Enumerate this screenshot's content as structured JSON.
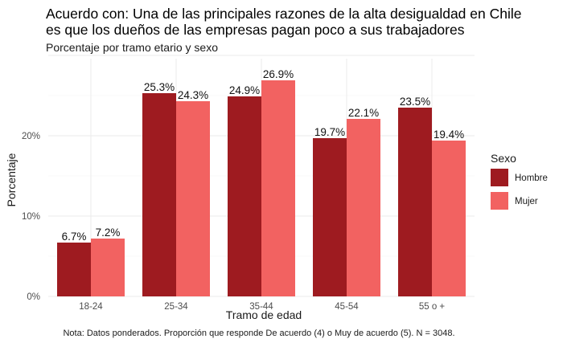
{
  "chart_data": {
    "type": "bar",
    "title": "Acuerdo con: Una de las principales razones de la alta desigualdad en Chile es que los dueños de las empresas pagan poco a sus trabajadores",
    "title_lines": [
      "Acuerdo con: Una de las principales razones de la alta desigualdad en Chile",
      "es que los dueños de las empresas pagan poco a sus trabajadores"
    ],
    "subtitle": "Porcentaje por tramo etario y sexo",
    "xlabel": "Tramo de edad",
    "ylabel": "Porcentaje",
    "categories": [
      "18-24",
      "25-34",
      "35-44",
      "45-54",
      "55 o +"
    ],
    "series": [
      {
        "name": "Hombre",
        "color": "#9e1b20",
        "values": [
          6.7,
          25.3,
          24.9,
          19.7,
          23.5
        ],
        "labels": [
          "6.7%",
          "25.3%",
          "24.9%",
          "19.7%",
          "23.5%"
        ]
      },
      {
        "name": "Mujer",
        "color": "#f26261",
        "values": [
          7.2,
          24.3,
          26.9,
          22.1,
          19.4
        ],
        "labels": [
          "7.2%",
          "24.3%",
          "26.9%",
          "22.1%",
          "19.4%"
        ]
      }
    ],
    "ylim": [
      0,
      30
    ],
    "yticks": [
      0,
      10,
      20
    ],
    "ytick_labels": [
      "0%",
      "10%",
      "20%"
    ],
    "legend_title": "Sexo",
    "legend_position": "right",
    "grid": true,
    "caption": "Nota: Datos ponderados. Proporción que responde De acuerdo (4) o Muy de acuerdo (5). N = 3048."
  }
}
